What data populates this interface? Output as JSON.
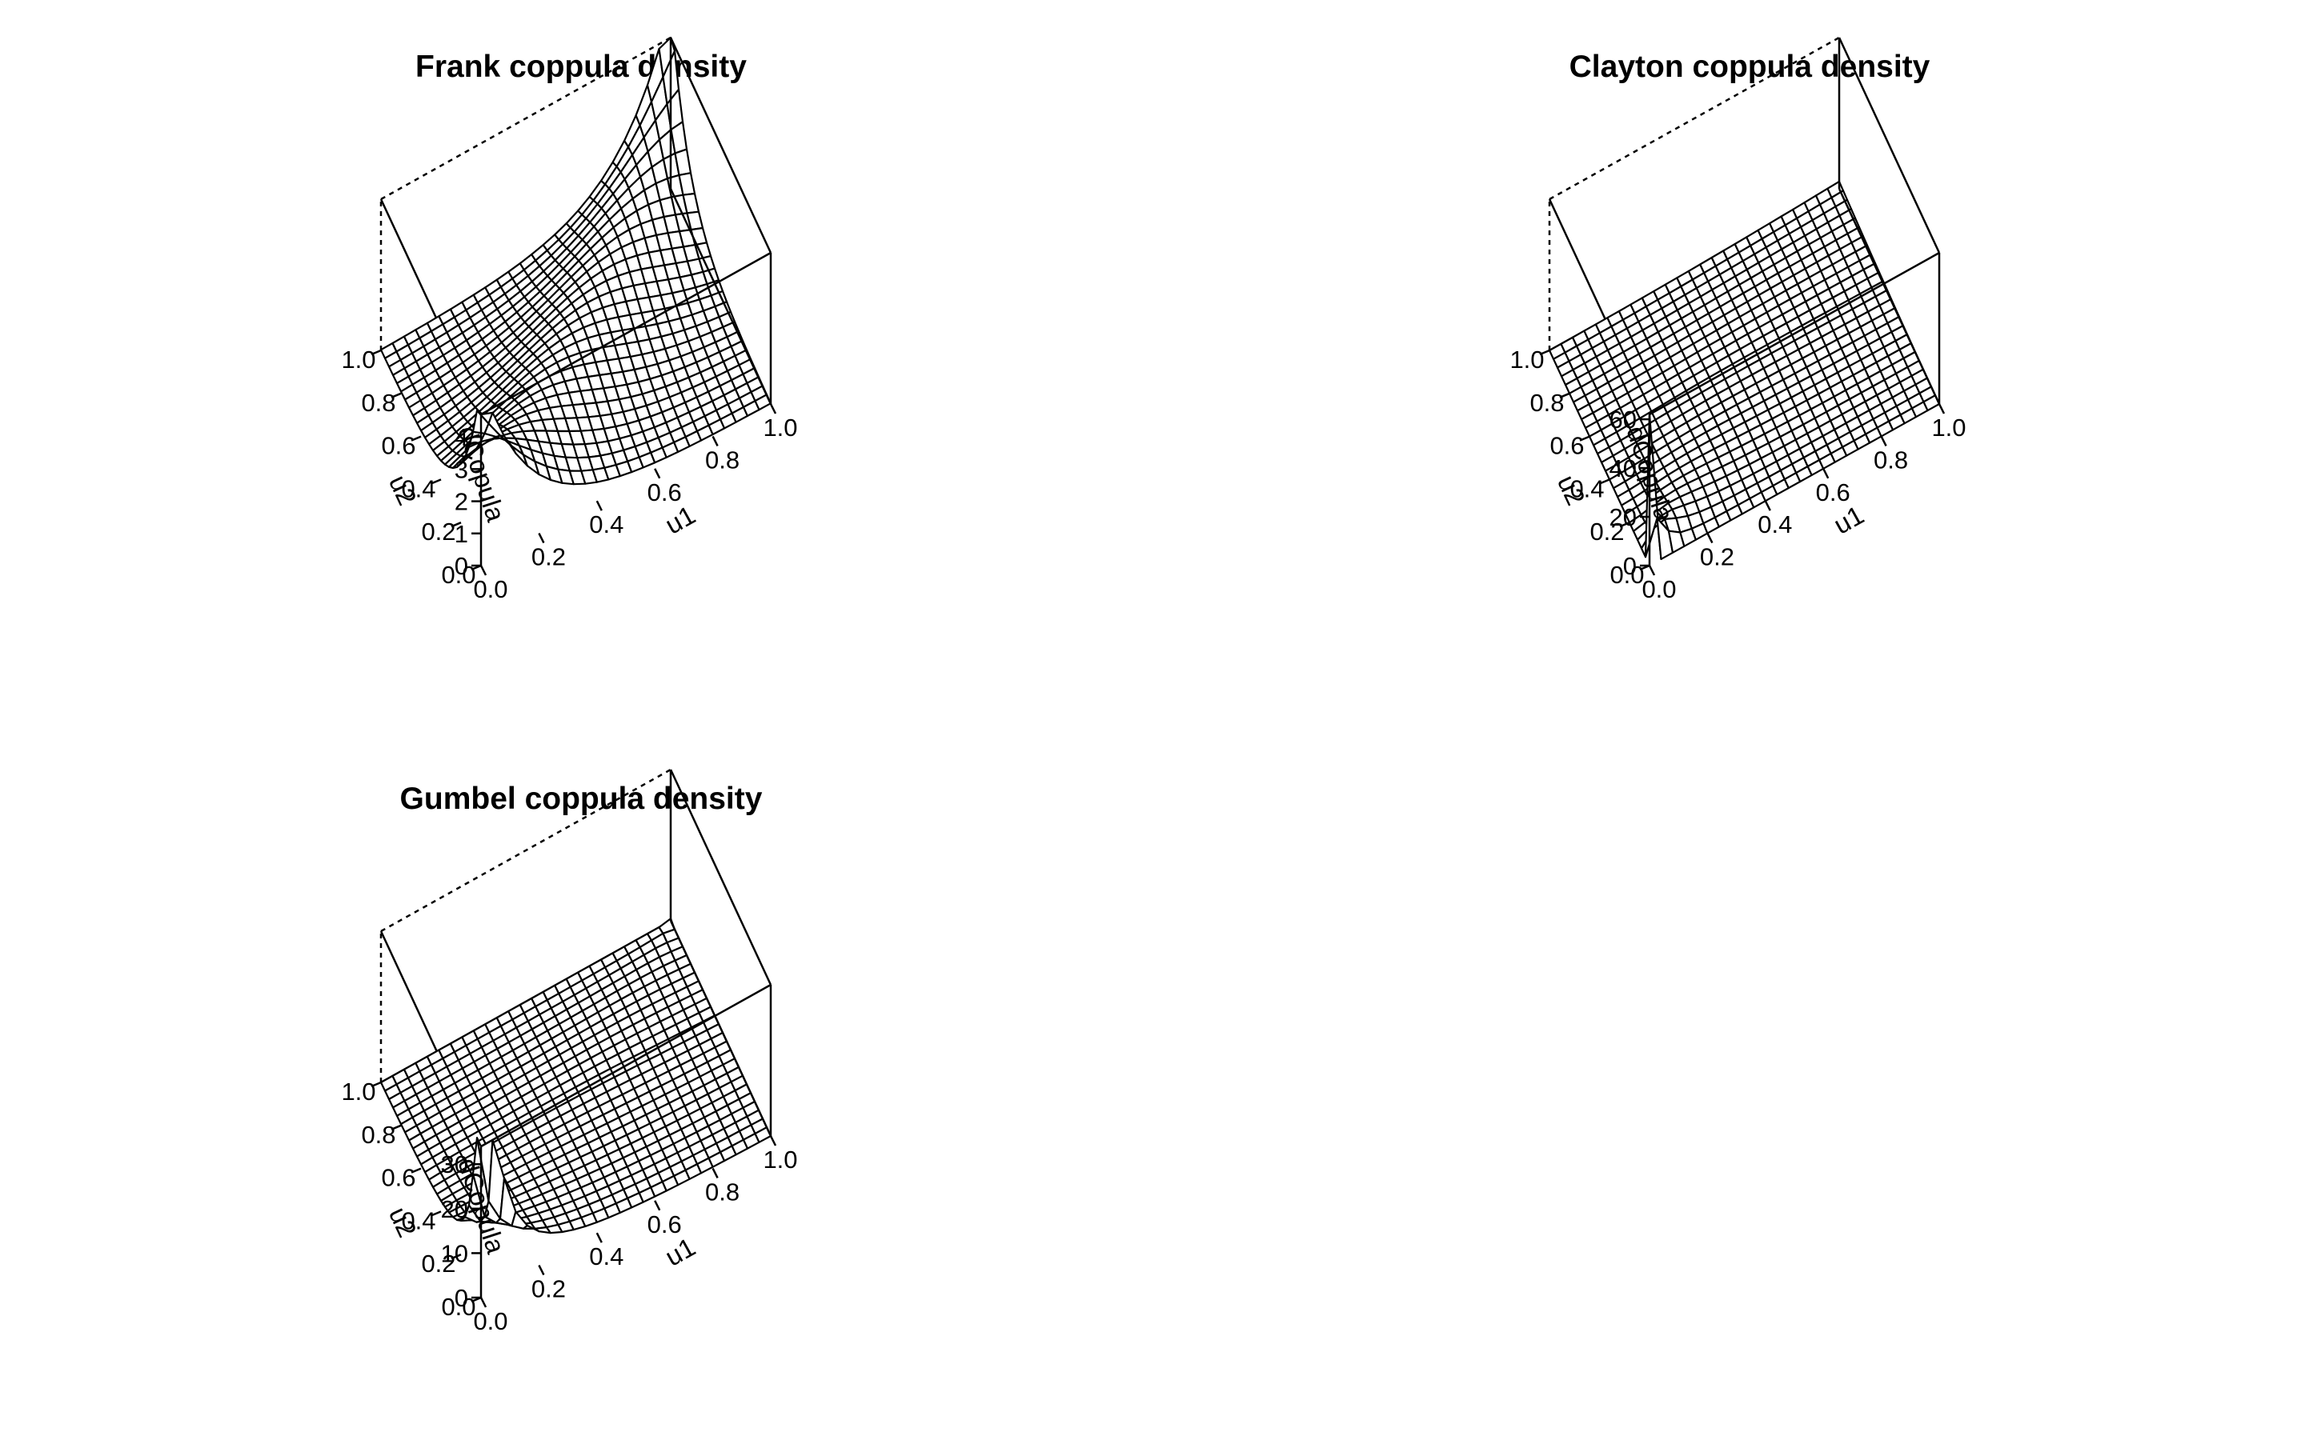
{
  "chart_data": [
    {
      "type": "surface",
      "title": "Frank coppula density",
      "family": "Frank",
      "theta": 5.7,
      "xlabel": "u1",
      "ylabel": "u2",
      "zlabel": "dCopula",
      "xlim": [
        0,
        1
      ],
      "ylim": [
        0,
        1
      ],
      "zlim": [
        0,
        4.7
      ],
      "x_ticks": [
        "0.0",
        "0.2",
        "0.4",
        "0.6",
        "0.8",
        "1.0"
      ],
      "y_ticks": [
        "0.0",
        "0.2",
        "0.4",
        "0.6",
        "0.8",
        "1.0"
      ],
      "z_ticks": [
        "0",
        "1",
        "2",
        "3",
        "4"
      ],
      "z_tick_values": [
        0,
        1,
        2,
        3,
        4
      ],
      "grid_n": 25
    },
    {
      "type": "surface",
      "title": "Clayton coppula density",
      "family": "Clayton",
      "theta": 2,
      "xlabel": "u1",
      "ylabel": "u2",
      "zlabel": "dCopula",
      "xlim": [
        0,
        1
      ],
      "ylim": [
        0,
        1
      ],
      "zlim": [
        0,
        62
      ],
      "x_ticks": [
        "0.0",
        "0.2",
        "0.4",
        "0.6",
        "0.8",
        "1.0"
      ],
      "y_ticks": [
        "0.0",
        "0.2",
        "0.4",
        "0.6",
        "0.8",
        "1.0"
      ],
      "z_ticks": [
        "0",
        "20",
        "40",
        "60"
      ],
      "z_tick_values": [
        0,
        20,
        40,
        60
      ],
      "grid_n": 25
    },
    {
      "type": "surface",
      "title": "Gumbel coppula density",
      "family": "Gumbel",
      "theta": 2,
      "xlabel": "u1",
      "ylabel": "u2",
      "zlabel": "dCopula",
      "xlim": [
        0,
        1
      ],
      "ylim": [
        0,
        1
      ],
      "zlim": [
        0,
        34
      ],
      "x_ticks": [
        "0.0",
        "0.2",
        "0.4",
        "0.6",
        "0.8",
        "1.0"
      ],
      "y_ticks": [
        "0.0",
        "0.2",
        "0.4",
        "0.6",
        "0.8",
        "1.0"
      ],
      "z_ticks": [
        "0",
        "10",
        "20",
        "30"
      ],
      "z_tick_values": [
        0,
        10,
        20,
        30
      ],
      "grid_n": 25
    }
  ]
}
